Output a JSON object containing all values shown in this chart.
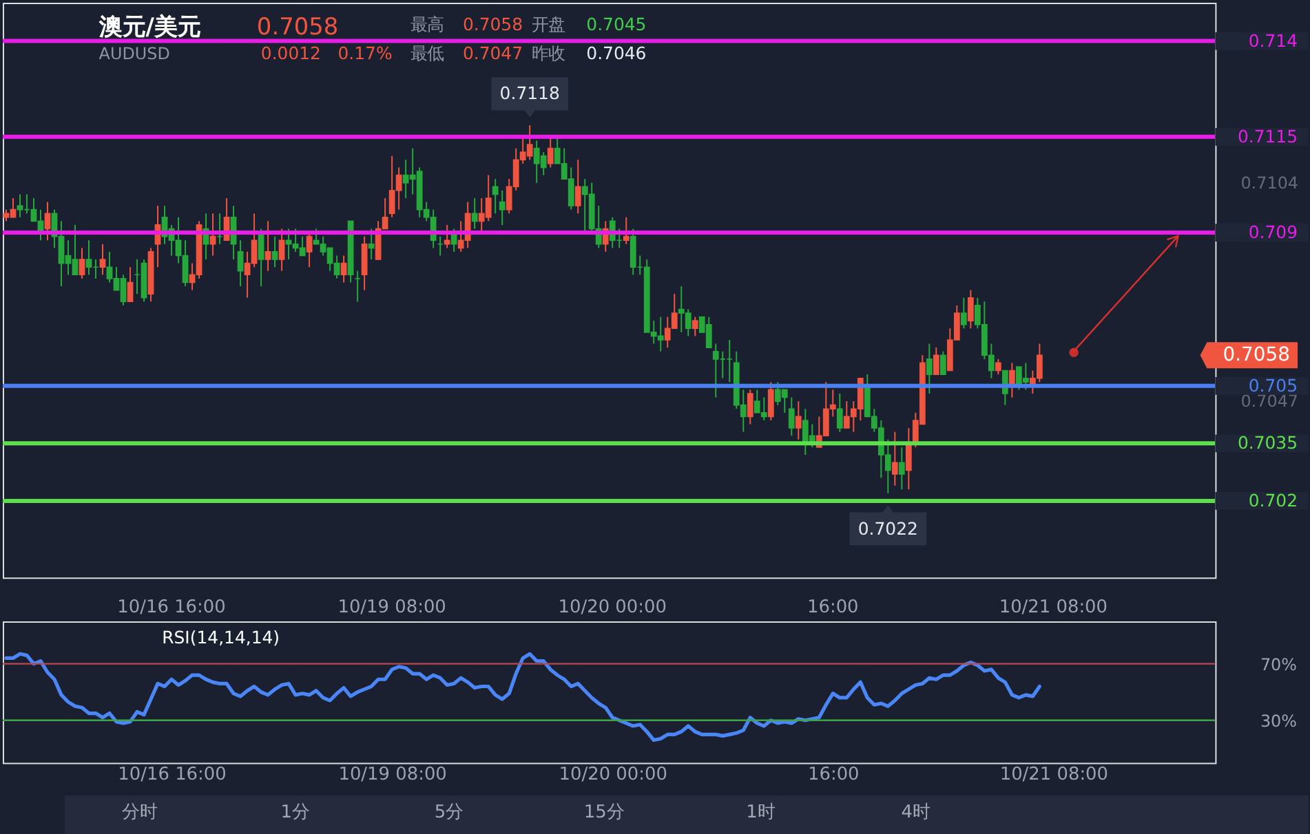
{
  "chart_data": [
    {
      "type": "candlestick",
      "title": "澳元/美元",
      "subtitle": "AUDUSD",
      "categories": [
        null,
        null,
        null,
        null,
        null,
        null,
        null,
        null,
        null,
        null,
        null,
        null,
        null,
        null,
        null,
        null,
        null,
        null,
        null,
        null,
        null,
        null,
        null,
        null,
        "10/16 16:00",
        null,
        null,
        null,
        null,
        null,
        null,
        null,
        null,
        null,
        null,
        null,
        null,
        null,
        null,
        null,
        null,
        null,
        null,
        null,
        null,
        null,
        null,
        null,
        null,
        null,
        null,
        null,
        null,
        null,
        null,
        null,
        "10/19 08:00",
        null,
        null,
        null,
        null,
        null,
        null,
        null,
        null,
        null,
        null,
        null,
        null,
        null,
        null,
        null,
        null,
        null,
        null,
        null,
        null,
        null,
        null,
        null,
        null,
        null,
        null,
        null,
        null,
        null,
        null,
        null,
        "10/20 00:00",
        null,
        null,
        null,
        null,
        null,
        null,
        null,
        null,
        null,
        null,
        null,
        null,
        null,
        null,
        null,
        null,
        null,
        null,
        null,
        null,
        null,
        null,
        null,
        null,
        null,
        null,
        null,
        null,
        null,
        null,
        null,
        "16:00",
        null,
        null,
        null,
        null,
        null,
        null,
        null,
        null,
        null,
        null,
        null,
        null,
        null,
        null,
        null,
        null,
        null,
        null,
        null,
        null,
        null,
        null,
        null,
        null,
        null,
        null,
        null,
        null,
        null,
        null,
        null,
        "10/21 08:00",
        null,
        null,
        null,
        null,
        null,
        null,
        null,
        null,
        null,
        null,
        null,
        null,
        null,
        null,
        null,
        null,
        null,
        null,
        null,
        null,
        null,
        null,
        null
      ],
      "ohlc": [
        [
          0.7094,
          0.7096,
          0.7093,
          0.7095
        ],
        [
          0.7094,
          0.7099,
          0.7094,
          0.7096
        ],
        [
          0.7097,
          0.71,
          0.7094,
          0.7096
        ],
        [
          0.7096,
          0.71,
          0.7095,
          0.7096
        ],
        [
          0.7096,
          0.7099,
          0.7093,
          0.7093
        ],
        [
          0.7093,
          0.7096,
          0.7088,
          0.709
        ],
        [
          0.7091,
          0.7098,
          0.7088,
          0.7095
        ],
        [
          0.7095,
          0.7096,
          0.7086,
          0.7089
        ],
        [
          0.7089,
          0.7093,
          0.7076,
          0.7082
        ],
        [
          0.7084,
          0.7088,
          0.7079,
          0.7082
        ],
        [
          0.7083,
          0.7092,
          0.7079,
          0.7079
        ],
        [
          0.7079,
          0.7086,
          0.7078,
          0.7083
        ],
        [
          0.7083,
          0.7088,
          0.7079,
          0.7081
        ],
        [
          0.7081,
          0.7083,
          0.7078,
          0.7081
        ],
        [
          0.7081,
          0.7087,
          0.7079,
          0.7083
        ],
        [
          0.7081,
          0.7085,
          0.7077,
          0.7078
        ],
        [
          0.7078,
          0.7081,
          0.7075,
          0.7075
        ],
        [
          0.7078,
          0.7079,
          0.7071,
          0.7072
        ],
        [
          0.7072,
          0.7081,
          0.7072,
          0.7077
        ],
        [
          0.7079,
          0.7083,
          0.7074,
          0.7079
        ],
        [
          0.7082,
          0.7083,
          0.7072,
          0.7073
        ],
        [
          0.7074,
          0.7086,
          0.7072,
          0.7085
        ],
        [
          0.7087,
          0.7097,
          0.7081,
          0.7092
        ],
        [
          0.7094,
          0.7097,
          0.7087,
          0.7089
        ],
        [
          0.7091,
          0.7092,
          0.7084,
          0.7088
        ],
        [
          0.7088,
          0.7094,
          0.7082,
          0.7084
        ],
        [
          0.7084,
          0.7088,
          0.7076,
          0.7077
        ],
        [
          0.7077,
          0.7082,
          0.7075,
          0.7079
        ],
        [
          0.7079,
          0.7093,
          0.7078,
          0.7092
        ],
        [
          0.7091,
          0.7095,
          0.7083,
          0.7087
        ],
        [
          0.7087,
          0.7095,
          0.7084,
          0.7089
        ],
        [
          0.7089,
          0.7095,
          0.7087,
          0.7089
        ],
        [
          0.7088,
          0.7099,
          0.7088,
          0.7094
        ],
        [
          0.7094,
          0.7097,
          0.7083,
          0.7087
        ],
        [
          0.7085,
          0.7088,
          0.7076,
          0.708
        ],
        [
          0.7079,
          0.7085,
          0.7073,
          0.7082
        ],
        [
          0.7082,
          0.7095,
          0.7081,
          0.7088
        ],
        [
          0.709,
          0.7091,
          0.7076,
          0.7083
        ],
        [
          0.7083,
          0.7093,
          0.708,
          0.7085
        ],
        [
          0.7085,
          0.7089,
          0.7081,
          0.7083
        ],
        [
          0.7083,
          0.7091,
          0.708,
          0.7088
        ],
        [
          0.7088,
          0.7091,
          0.7083,
          0.7087
        ],
        [
          0.7087,
          0.7091,
          0.7085,
          0.7086
        ],
        [
          0.7086,
          0.7089,
          0.7084,
          0.7084
        ],
        [
          0.7085,
          0.709,
          0.7081,
          0.7089
        ],
        [
          0.7088,
          0.7091,
          0.7087,
          0.7087
        ],
        [
          0.7087,
          0.7089,
          0.7084,
          0.7085
        ],
        [
          0.7086,
          0.7086,
          0.708,
          0.7082
        ],
        [
          0.7082,
          0.7084,
          0.7078,
          0.7079
        ],
        [
          0.7079,
          0.7084,
          0.7077,
          0.7082
        ],
        [
          0.7093,
          0.7093,
          0.7077,
          0.7079
        ],
        [
          0.7078,
          0.708,
          0.7072,
          0.7078
        ],
        [
          0.7079,
          0.7089,
          0.7075,
          0.7087
        ],
        [
          0.7087,
          0.7091,
          0.7083,
          0.7086
        ],
        [
          0.7083,
          0.7093,
          0.7083,
          0.7091
        ],
        [
          0.7091,
          0.7099,
          0.7091,
          0.7094
        ],
        [
          0.7095,
          0.711,
          0.7094,
          0.7101
        ],
        [
          0.7101,
          0.7107,
          0.7096,
          0.7105
        ],
        [
          0.7105,
          0.7109,
          0.7099,
          0.7103
        ],
        [
          0.7105,
          0.7112,
          0.71,
          0.7104
        ],
        [
          0.7106,
          0.7107,
          0.7094,
          0.7096
        ],
        [
          0.7096,
          0.7098,
          0.7093,
          0.7094
        ],
        [
          0.7094,
          0.7096,
          0.7086,
          0.7088
        ],
        [
          0.7087,
          0.7089,
          0.7084,
          0.7087
        ],
        [
          0.7087,
          0.7092,
          0.7086,
          0.7088
        ],
        [
          0.709,
          0.7091,
          0.7085,
          0.7087
        ],
        [
          0.7086,
          0.7093,
          0.7085,
          0.7088
        ],
        [
          0.7088,
          0.7098,
          0.7086,
          0.7095
        ],
        [
          0.7095,
          0.7099,
          0.7091,
          0.7093
        ],
        [
          0.7093,
          0.7099,
          0.709,
          0.7095
        ],
        [
          0.7094,
          0.7105,
          0.7093,
          0.7099
        ],
        [
          0.7102,
          0.7104,
          0.7095,
          0.71
        ],
        [
          0.7098,
          0.7101,
          0.7092,
          0.7096
        ],
        [
          0.7096,
          0.7104,
          0.7095,
          0.7102
        ],
        [
          0.7102,
          0.7112,
          0.7101,
          0.7109
        ],
        [
          0.7109,
          0.7115,
          0.7108,
          0.7111
        ],
        [
          0.711,
          0.7118,
          0.7109,
          0.7113
        ],
        [
          0.7112,
          0.7114,
          0.7103,
          0.7108
        ],
        [
          0.711,
          0.7111,
          0.7105,
          0.7107
        ],
        [
          0.7108,
          0.7115,
          0.7107,
          0.7112
        ],
        [
          0.7112,
          0.7115,
          0.7108,
          0.7108
        ],
        [
          0.7108,
          0.7112,
          0.7104,
          0.7104
        ],
        [
          0.7104,
          0.7107,
          0.7096,
          0.7097
        ],
        [
          0.7097,
          0.7109,
          0.7095,
          0.7102
        ],
        [
          0.7102,
          0.7104,
          0.709,
          0.71
        ],
        [
          0.71,
          0.7103,
          0.709,
          0.7091
        ],
        [
          0.7091,
          0.7097,
          0.7086,
          0.7087
        ],
        [
          0.7087,
          0.7093,
          0.7085,
          0.7091
        ],
        [
          0.7093,
          0.7094,
          0.7086,
          0.7088
        ],
        [
          0.7088,
          0.7091,
          0.7086,
          0.7088
        ],
        [
          0.7088,
          0.7094,
          0.7087,
          0.7089
        ],
        [
          0.7089,
          0.7091,
          0.7079,
          0.7081
        ],
        [
          0.7081,
          0.7084,
          0.7079,
          0.7081
        ],
        [
          0.7081,
          0.7083,
          0.7064,
          0.7064
        ],
        [
          0.7064,
          0.7067,
          0.7061,
          0.7063
        ],
        [
          0.7063,
          0.7068,
          0.7059,
          0.7062
        ],
        [
          0.7062,
          0.7068,
          0.706,
          0.7065
        ],
        [
          0.7065,
          0.7074,
          0.7065,
          0.7069
        ],
        [
          0.707,
          0.7076,
          0.7064,
          0.7069
        ],
        [
          0.7069,
          0.707,
          0.7063,
          0.7065
        ],
        [
          0.7065,
          0.7068,
          0.7063,
          0.7067
        ],
        [
          0.7068,
          0.7068,
          0.7064,
          0.7064
        ],
        [
          0.7066,
          0.7068,
          0.706,
          0.706
        ],
        [
          0.7059,
          0.7061,
          0.7047,
          0.7057
        ],
        [
          0.7057,
          0.7059,
          0.7052,
          0.7057
        ],
        [
          0.7057,
          0.7062,
          0.7051,
          0.7057
        ],
        [
          0.7056,
          0.7059,
          0.7044,
          0.7045
        ],
        [
          0.7045,
          0.7049,
          0.7038,
          0.7042
        ],
        [
          0.7042,
          0.7049,
          0.704,
          0.7048
        ],
        [
          0.7046,
          0.7049,
          0.7043,
          0.7043
        ],
        [
          0.7043,
          0.7047,
          0.7041,
          0.7042
        ],
        [
          0.7042,
          0.7051,
          0.7041,
          0.7049
        ],
        [
          0.7049,
          0.7051,
          0.7045,
          0.7046
        ],
        [
          0.7049,
          0.7049,
          0.7043,
          0.7047
        ],
        [
          0.7044,
          0.7047,
          0.7037,
          0.7039
        ],
        [
          0.7039,
          0.7046,
          0.7036,
          0.7042
        ],
        [
          0.7041,
          0.7044,
          0.7032,
          0.7035
        ],
        [
          0.7037,
          0.704,
          0.7034,
          0.7035
        ],
        [
          0.7034,
          0.7042,
          0.7034,
          0.7037
        ],
        [
          0.7037,
          0.7051,
          0.7037,
          0.7044
        ],
        [
          0.7044,
          0.7049,
          0.7042,
          0.7045
        ],
        [
          0.7044,
          0.7048,
          0.7038,
          0.7039
        ],
        [
          0.7039,
          0.7046,
          0.7039,
          0.7042
        ],
        [
          0.7042,
          0.7046,
          0.7038,
          0.7044
        ],
        [
          0.7044,
          0.7052,
          0.7041,
          0.7052
        ],
        [
          0.705,
          0.7053,
          0.7042,
          0.7042
        ],
        [
          0.7042,
          0.7044,
          0.7038,
          0.7039
        ],
        [
          0.7039,
          0.7041,
          0.7026,
          0.7032
        ],
        [
          0.7032,
          0.7036,
          0.7022,
          0.7028
        ],
        [
          0.7027,
          0.7038,
          0.7024,
          0.703
        ],
        [
          0.703,
          0.7034,
          0.7023,
          0.7027
        ],
        [
          0.7028,
          0.7039,
          0.7023,
          0.7035
        ],
        [
          0.7035,
          0.7043,
          0.7034,
          0.7041
        ],
        [
          0.704,
          0.7058,
          0.704,
          0.7056
        ],
        [
          0.7057,
          0.7061,
          0.7048,
          0.7053
        ],
        [
          0.7053,
          0.706,
          0.7053,
          0.7058
        ],
        [
          0.7058,
          0.7059,
          0.7053,
          0.7053
        ],
        [
          0.7054,
          0.7065,
          0.7054,
          0.7062
        ],
        [
          0.7062,
          0.7071,
          0.7062,
          0.7069
        ],
        [
          0.7069,
          0.7073,
          0.7065,
          0.7066
        ],
        [
          0.7067,
          0.7075,
          0.7065,
          0.7073
        ],
        [
          0.7071,
          0.7073,
          0.7065,
          0.7066
        ],
        [
          0.7066,
          0.7072,
          0.7057,
          0.7058
        ],
        [
          0.7058,
          0.7061,
          0.7052,
          0.7054
        ],
        [
          0.7054,
          0.7057,
          0.7053,
          0.7056
        ],
        [
          0.7054,
          0.7054,
          0.7045,
          0.7048
        ],
        [
          0.705,
          0.7056,
          0.7047,
          0.7054
        ],
        [
          0.7055,
          0.7055,
          0.7049,
          0.705
        ],
        [
          0.7052,
          0.7056,
          0.7049,
          0.7051
        ],
        [
          0.705,
          0.7054,
          0.7048,
          0.7052
        ],
        [
          0.7052,
          0.7061,
          0.7051,
          0.7058
        ],
        null,
        null,
        null,
        null,
        null,
        null,
        null,
        null,
        null,
        null,
        null,
        null,
        null,
        null,
        null,
        null,
        null,
        null,
        null,
        null,
        null,
        null,
        null,
        null,
        null
      ],
      "colors": [
        "#f0553f",
        "#f0553f",
        "#26a93a",
        "#26a93a",
        "#26a93a",
        "#26a93a",
        "#f0553f",
        "#26a93a",
        "#26a93a",
        "#26a93a",
        "#26a93a",
        "#f0553f",
        "#26a93a",
        "#26a93a",
        "#f0553f",
        "#26a93a",
        "#26a93a",
        "#26a93a",
        "#f0553f",
        "#26a93a",
        "#26a93a",
        "#f0553f",
        "#f0553f",
        "#26a93a",
        "#26a93a",
        "#26a93a",
        "#26a93a",
        "#f0553f",
        "#f0553f",
        "#26a93a",
        "#f0553f",
        "#26a93a",
        "#f0553f",
        "#26a93a",
        "#26a93a",
        "#f0553f",
        "#f0553f",
        "#26a93a",
        "#f0553f",
        "#26a93a",
        "#f0553f",
        "#26a93a",
        "#26a93a",
        "#26a93a",
        "#f0553f",
        "#26a93a",
        "#26a93a",
        "#26a93a",
        "#26a93a",
        "#f0553f",
        "#26a93a",
        "#26a93a",
        "#f0553f",
        "#26a93a",
        "#f0553f",
        "#f0553f",
        "#f0553f",
        "#f0553f",
        "#26a93a",
        "#26a93a",
        "#26a93a",
        "#26a93a",
        "#26a93a",
        "#26a93a",
        "#f0553f",
        "#26a93a",
        "#f0553f",
        "#f0553f",
        "#26a93a",
        "#f0553f",
        "#f0553f",
        "#26a93a",
        "#26a93a",
        "#f0553f",
        "#f0553f",
        "#f0553f",
        "#f0553f",
        "#26a93a",
        "#26a93a",
        "#f0553f",
        "#26a93a",
        "#26a93a",
        "#26a93a",
        "#f0553f",
        "#26a93a",
        "#26a93a",
        "#26a93a",
        "#f0553f",
        "#26a93a",
        "#26a93a",
        "#f0553f",
        "#26a93a",
        "#26a93a",
        "#26a93a",
        "#26a93a",
        "#26a93a",
        "#f0553f",
        "#f0553f",
        "#26a93a",
        "#26a93a",
        "#f0553f",
        "#26a93a",
        "#26a93a",
        "#26a93a",
        "#26a93a",
        "#26a93a",
        "#26a93a",
        "#26a93a",
        "#f0553f",
        "#26a93a",
        "#26a93a",
        "#f0553f",
        "#26a93a",
        "#26a93a",
        "#26a93a",
        "#f0553f",
        "#26a93a",
        "#26a93a",
        "#f0553f",
        "#f0553f",
        "#f0553f",
        "#26a93a",
        "#f0553f",
        "#f0553f",
        "#f0553f",
        "#26a93a",
        "#26a93a",
        "#26a93a",
        "#26a93a",
        "#f0553f",
        "#26a93a",
        "#f0553f",
        "#f0553f",
        "#f0553f",
        "#26a93a",
        "#f0553f",
        "#26a93a",
        "#f0553f",
        "#f0553f",
        "#26a93a",
        "#f0553f",
        "#26a93a",
        "#26a93a",
        "#26a93a",
        "#f0553f",
        "#26a93a",
        "#f0553f",
        "#26a93a",
        "#26a93a",
        "#f0553f",
        "#f0553f",
        null,
        null,
        null,
        null,
        null,
        null,
        null,
        null,
        null,
        null,
        null,
        null,
        null,
        null,
        null,
        null,
        null,
        null,
        null,
        null,
        null,
        null,
        null,
        null,
        null
      ],
      "ylim": [
        0.7,
        0.715
      ],
      "yticks": [
        0.7104,
        0.7047
      ],
      "ref_lines": [
        {
          "axis": "y",
          "value": 0.714,
          "label": "0.714",
          "color": "#e81ee8"
        },
        {
          "axis": "y",
          "value": 0.7115,
          "label": "0.7115",
          "color": "#e81ee8"
        },
        {
          "axis": "y",
          "value": 0.709,
          "label": "0.709",
          "color": "#e81ee8"
        },
        {
          "axis": "y",
          "value": 0.705,
          "label": "0.705",
          "color": "#4a80f0"
        },
        {
          "axis": "y",
          "value": 0.7035,
          "label": "0.7035",
          "color": "#5ee04a"
        },
        {
          "axis": "y",
          "value": 0.702,
          "label": "0.702",
          "color": "#5ee04a"
        }
      ],
      "annotations": [
        "0.7058",
        "0.0012",
        "0.17%",
        "最高",
        "0.7058",
        "开盘",
        "0.7045",
        "最低",
        "0.7047",
        "昨收",
        "0.7046",
        {
          "text": "0.7118",
          "y": 0.7118
        },
        {
          "text": "0.7022",
          "y": 0.7022
        },
        "0.7058"
      ]
    },
    {
      "type": "line",
      "title": "RSI(14,14,14)",
      "categories": [
        null,
        null,
        null,
        null,
        null,
        null,
        null,
        null,
        null,
        null,
        null,
        null,
        null,
        null,
        null,
        null,
        null,
        null,
        null,
        null,
        null,
        null,
        null,
        null,
        "10/16 16:00",
        null,
        null,
        null,
        null,
        null,
        null,
        null,
        null,
        null,
        null,
        null,
        null,
        null,
        null,
        null,
        null,
        null,
        null,
        null,
        null,
        null,
        null,
        null,
        null,
        null,
        null,
        null,
        null,
        null,
        null,
        null,
        "10/19 08:00",
        null,
        null,
        null,
        null,
        null,
        null,
        null,
        null,
        null,
        null,
        null,
        null,
        null,
        null,
        null,
        null,
        null,
        null,
        null,
        null,
        null,
        null,
        null,
        null,
        null,
        null,
        null,
        null,
        null,
        null,
        null,
        "10/20 00:00",
        null,
        null,
        null,
        null,
        null,
        null,
        null,
        null,
        null,
        null,
        null,
        null,
        null,
        null,
        null,
        null,
        null,
        null,
        null,
        null,
        null,
        null,
        null,
        null,
        null,
        null,
        null,
        null,
        null,
        null,
        null,
        "16:00",
        null,
        null,
        null,
        null,
        null,
        null,
        null,
        null,
        null,
        null,
        null,
        null,
        null,
        null,
        null,
        null,
        null,
        null,
        null,
        null,
        null,
        null,
        null,
        null,
        null,
        null,
        null,
        null,
        null,
        null,
        null,
        "10/21 08:00",
        null,
        null,
        null,
        null,
        null,
        null,
        null,
        null,
        null,
        null,
        null,
        null,
        null,
        null,
        null,
        null,
        null,
        null,
        null,
        null,
        null,
        null,
        null
      ],
      "series": [
        {
          "color": "#4a86f5",
          "values": [
            74,
            74,
            77,
            76,
            70,
            72,
            64,
            59,
            48,
            43,
            40,
            39,
            35,
            35,
            32,
            35,
            29,
            28,
            29,
            36,
            34,
            45,
            56,
            54,
            59,
            55,
            58,
            62,
            62,
            59,
            57,
            56,
            56,
            49,
            47,
            51,
            54,
            50,
            48,
            52,
            55,
            56,
            48,
            49,
            48,
            51,
            46,
            44,
            49,
            53,
            47,
            50,
            52,
            54,
            59,
            59,
            66,
            68,
            67,
            63,
            63,
            59,
            62,
            60,
            55,
            56,
            60,
            57,
            53,
            54,
            54,
            48,
            45,
            49,
            63,
            74,
            77,
            72,
            72,
            66,
            62,
            59,
            54,
            56,
            51,
            46,
            42,
            39,
            32,
            30,
            28,
            26,
            27,
            22,
            16,
            17,
            20,
            20,
            22,
            26,
            22,
            20,
            20,
            20,
            19,
            20,
            21,
            23,
            32,
            28,
            26,
            30,
            28,
            29,
            28,
            31,
            30,
            31,
            32,
            41,
            49,
            46,
            46,
            52,
            57,
            46,
            41,
            42,
            40,
            44,
            49,
            52,
            55,
            56,
            60,
            59,
            62,
            62,
            65,
            69,
            71,
            69,
            65,
            66,
            60,
            57,
            48,
            46,
            48,
            47,
            54,
            null,
            null,
            null,
            null,
            null,
            null,
            null,
            null,
            null,
            null,
            null,
            null,
            null,
            null,
            null,
            null,
            null,
            null,
            null,
            null,
            null,
            null,
            null,
            null,
            null
          ]
        }
      ],
      "ylim": [
        0,
        100
      ],
      "yticks": [
        {
          "value": 70,
          "label": "70%"
        },
        {
          "value": 30,
          "label": "30%"
        }
      ],
      "ref_lines": [
        {
          "axis": "y",
          "value": 70,
          "color": "#b8474f"
        },
        {
          "axis": "y",
          "value": 30,
          "color": "#3da648"
        }
      ],
      "annotations": [
        "分时",
        "1分",
        "5分",
        "15分",
        "1时",
        "4时"
      ]
    }
  ]
}
